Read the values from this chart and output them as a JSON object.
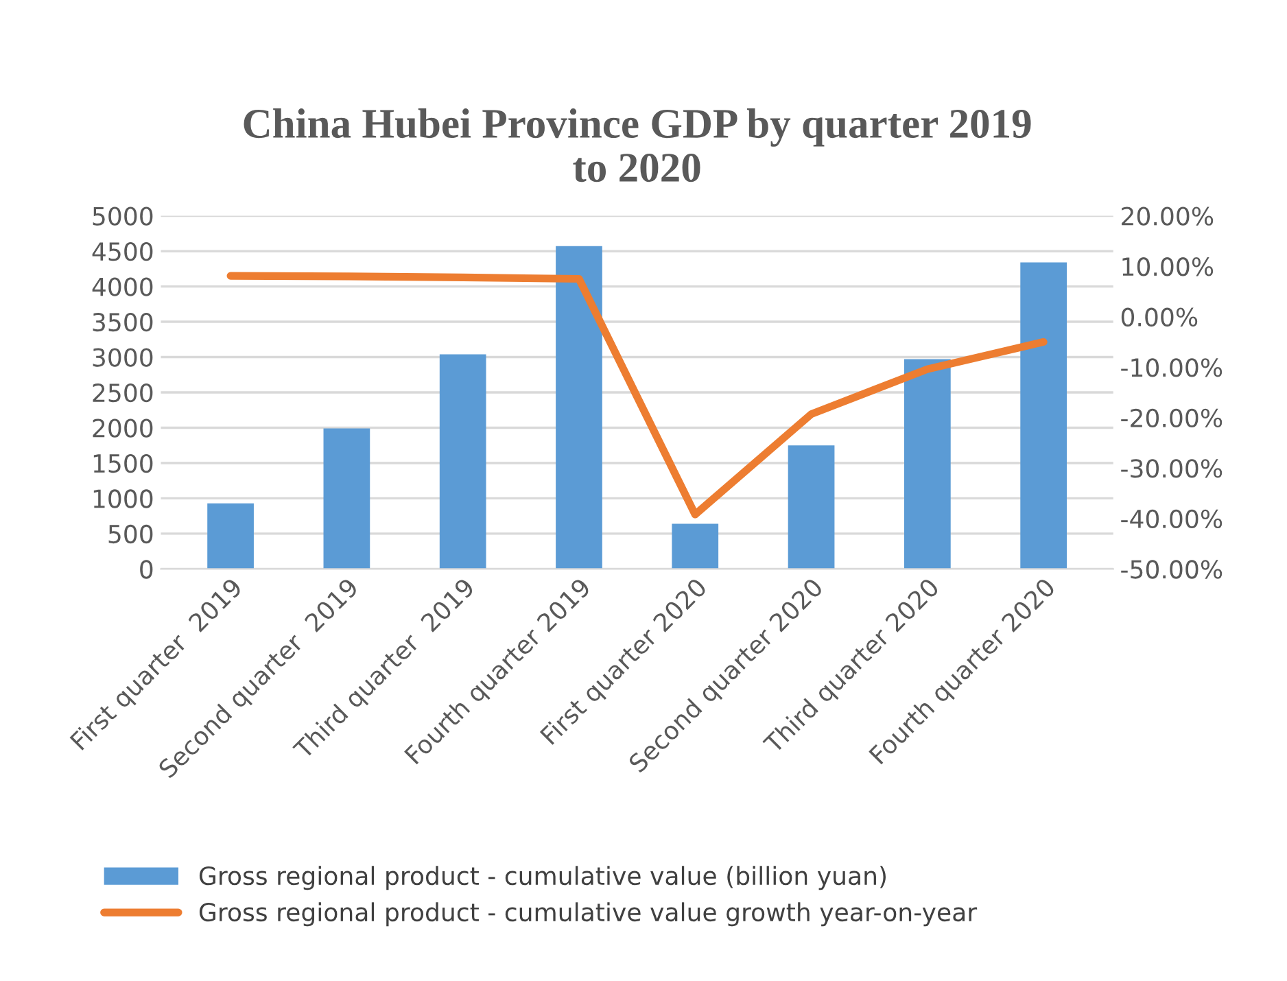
{
  "chart_data": {
    "type": "bar",
    "title": "China Hubei Province GDP by quarter 2019\nto 2020",
    "categories": [
      "First quarter  2019",
      "Second quarter  2019",
      "Third quarter  2019",
      "Fourth quarter 2019",
      "First quarter 2020",
      "Second quarter 2020",
      "Third quarter 2020",
      "Fourth quarter 2020"
    ],
    "series": [
      {
        "name": "Gross regional product - cumulative value (billion yuan)",
        "color": "#5b9bd5",
        "values": [
          930,
          1990,
          3040,
          4570,
          640,
          1750,
          2970,
          4340
        ]
      },
      {
        "name": "Gross regional product - cumulative value growth year-on-year",
        "type": "line",
        "axis": "y2",
        "color": "#ed7d31",
        "values": [
          8.1,
          8.0,
          7.8,
          7.5,
          -39.2,
          -19.3,
          -10.4,
          -5.0
        ]
      }
    ],
    "ylim": [
      0,
      5000
    ],
    "yticks": [
      0,
      500,
      1000,
      1500,
      2000,
      2500,
      3000,
      3500,
      4000,
      4500,
      5000
    ],
    "y2lim": [
      -50,
      20
    ],
    "y2ticks": [
      {
        "value": -50,
        "label": "-50.00%"
      },
      {
        "value": -40,
        "label": "-40.00%"
      },
      {
        "value": -30,
        "label": "-30.00%"
      },
      {
        "value": -20,
        "label": "-20.00%"
      },
      {
        "value": -10,
        "label": "-10.00%"
      },
      {
        "value": 0,
        "label": "0.00%"
      },
      {
        "value": 10,
        "label": "10.00%"
      },
      {
        "value": 20,
        "label": "20.00%"
      }
    ],
    "grid": "y",
    "legend": "bottom",
    "marker": "none",
    "line_style": "solid"
  }
}
